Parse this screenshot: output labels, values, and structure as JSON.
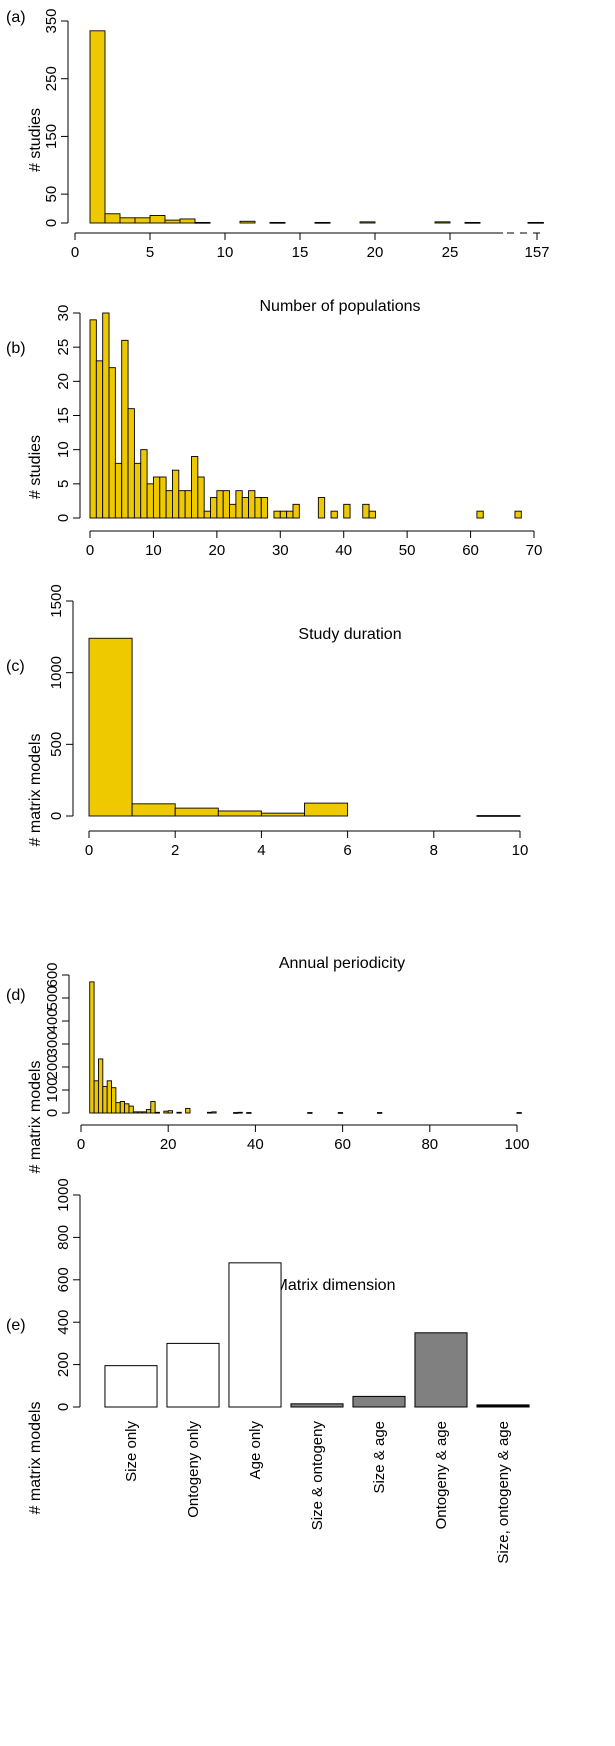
{
  "colors": {
    "bar": "#eec900",
    "white_bar": "#ffffff",
    "gray_bar": "#808080",
    "axis": "#000000"
  },
  "chart_data": [
    {
      "panel": "(a)",
      "type": "bar",
      "xlabel": "Number of populations",
      "ylabel": "# studies",
      "xticks": [
        "0",
        "5",
        "10",
        "15",
        "20",
        "25",
        "157"
      ],
      "yticks": [
        "0",
        "50",
        "150",
        "250",
        "350"
      ],
      "ylim": [
        0,
        350
      ],
      "axis_break": true,
      "bins": [
        {
          "x0": 1,
          "x1": 2,
          "value": 333
        },
        {
          "x0": 2,
          "x1": 3,
          "value": 16
        },
        {
          "x0": 3,
          "x1": 4,
          "value": 9
        },
        {
          "x0": 4,
          "x1": 5,
          "value": 9
        },
        {
          "x0": 5,
          "x1": 6,
          "value": 13
        },
        {
          "x0": 6,
          "x1": 7,
          "value": 5
        },
        {
          "x0": 7,
          "x1": 8,
          "value": 7
        },
        {
          "x0": 8,
          "x1": 9,
          "value": 1
        },
        {
          "x0": 11,
          "x1": 12,
          "value": 3
        },
        {
          "x0": 13,
          "x1": 14,
          "value": 1
        },
        {
          "x0": 16,
          "x1": 17,
          "value": 1
        },
        {
          "x0": 19,
          "x1": 20,
          "value": 2
        },
        {
          "x0": 24,
          "x1": 25,
          "value": 2
        },
        {
          "x0": 26,
          "x1": 27,
          "value": 1
        },
        {
          "x0": 157,
          "x1": 158,
          "value": 1
        }
      ]
    },
    {
      "panel": "(b)",
      "type": "bar",
      "xlabel": "Study duration",
      "ylabel": "# studies",
      "xticks": [
        "0",
        "10",
        "20",
        "30",
        "40",
        "50",
        "60",
        "70"
      ],
      "yticks": [
        "0",
        "5",
        "10",
        "15",
        "20",
        "25",
        "30"
      ],
      "ylim": [
        0,
        30
      ],
      "bins": [
        {
          "x0": 0,
          "x1": 1,
          "value": 29
        },
        {
          "x0": 1,
          "x1": 2,
          "value": 23
        },
        {
          "x0": 2,
          "x1": 3,
          "value": 30
        },
        {
          "x0": 3,
          "x1": 4,
          "value": 22
        },
        {
          "x0": 4,
          "x1": 5,
          "value": 8
        },
        {
          "x0": 5,
          "x1": 6,
          "value": 26
        },
        {
          "x0": 6,
          "x1": 7,
          "value": 16
        },
        {
          "x0": 7,
          "x1": 8,
          "value": 8
        },
        {
          "x0": 8,
          "x1": 9,
          "value": 10
        },
        {
          "x0": 9,
          "x1": 10,
          "value": 5
        },
        {
          "x0": 10,
          "x1": 11,
          "value": 6
        },
        {
          "x0": 11,
          "x1": 12,
          "value": 6
        },
        {
          "x0": 12,
          "x1": 13,
          "value": 4
        },
        {
          "x0": 13,
          "x1": 14,
          "value": 7
        },
        {
          "x0": 14,
          "x1": 15,
          "value": 4
        },
        {
          "x0": 15,
          "x1": 16,
          "value": 4
        },
        {
          "x0": 16,
          "x1": 17,
          "value": 9
        },
        {
          "x0": 17,
          "x1": 18,
          "value": 6
        },
        {
          "x0": 18,
          "x1": 19,
          "value": 1
        },
        {
          "x0": 19,
          "x1": 20,
          "value": 3
        },
        {
          "x0": 20,
          "x1": 21,
          "value": 4
        },
        {
          "x0": 21,
          "x1": 22,
          "value": 4
        },
        {
          "x0": 22,
          "x1": 23,
          "value": 2
        },
        {
          "x0": 23,
          "x1": 24,
          "value": 4
        },
        {
          "x0": 24,
          "x1": 25,
          "value": 3
        },
        {
          "x0": 25,
          "x1": 26,
          "value": 4
        },
        {
          "x0": 26,
          "x1": 27,
          "value": 3
        },
        {
          "x0": 27,
          "x1": 28,
          "value": 3
        },
        {
          "x0": 29,
          "x1": 30,
          "value": 1
        },
        {
          "x0": 30,
          "x1": 31,
          "value": 1
        },
        {
          "x0": 31,
          "x1": 32,
          "value": 1
        },
        {
          "x0": 32,
          "x1": 33,
          "value": 2
        },
        {
          "x0": 36,
          "x1": 37,
          "value": 3
        },
        {
          "x0": 38,
          "x1": 39,
          "value": 1
        },
        {
          "x0": 40,
          "x1": 41,
          "value": 2
        },
        {
          "x0": 43,
          "x1": 44,
          "value": 2
        },
        {
          "x0": 44,
          "x1": 45,
          "value": 1
        },
        {
          "x0": 61,
          "x1": 62,
          "value": 1
        },
        {
          "x0": 67,
          "x1": 68,
          "value": 1
        }
      ]
    },
    {
      "panel": "(c)",
      "type": "bar",
      "xlabel": "Annual periodicity",
      "ylabel": "# matrix models",
      "xticks": [
        "0",
        "2",
        "4",
        "6",
        "8",
        "10"
      ],
      "yticks": [
        "0",
        "500",
        "1000",
        "1500"
      ],
      "ylim": [
        0,
        1500
      ],
      "bins": [
        {
          "x0": 0,
          "x1": 1,
          "value": 1240
        },
        {
          "x0": 1,
          "x1": 2,
          "value": 85
        },
        {
          "x0": 2,
          "x1": 3,
          "value": 55
        },
        {
          "x0": 3,
          "x1": 4,
          "value": 35
        },
        {
          "x0": 4,
          "x1": 5,
          "value": 20
        },
        {
          "x0": 5,
          "x1": 6,
          "value": 90
        },
        {
          "x0": 9,
          "x1": 10,
          "value": 3
        }
      ]
    },
    {
      "panel": "(d)",
      "type": "bar",
      "xlabel": "Matrix dimension",
      "ylabel": "# matrix models",
      "xticks": [
        "0",
        "20",
        "40",
        "60",
        "80",
        "100"
      ],
      "yticks": [
        "0",
        "100",
        "200",
        "300",
        "400",
        "500",
        "600"
      ],
      "ylim": [
        0,
        600
      ],
      "bins": [
        {
          "x0": 2,
          "x1": 3,
          "value": 570
        },
        {
          "x0": 3,
          "x1": 4,
          "value": 140
        },
        {
          "x0": 4,
          "x1": 5,
          "value": 235
        },
        {
          "x0": 5,
          "x1": 6,
          "value": 115
        },
        {
          "x0": 6,
          "x1": 7,
          "value": 140
        },
        {
          "x0": 7,
          "x1": 8,
          "value": 110
        },
        {
          "x0": 8,
          "x1": 9,
          "value": 45
        },
        {
          "x0": 9,
          "x1": 10,
          "value": 50
        },
        {
          "x0": 10,
          "x1": 11,
          "value": 40
        },
        {
          "x0": 11,
          "x1": 12,
          "value": 30
        },
        {
          "x0": 12,
          "x1": 13,
          "value": 5
        },
        {
          "x0": 13,
          "x1": 14,
          "value": 5
        },
        {
          "x0": 14,
          "x1": 15,
          "value": 5
        },
        {
          "x0": 15,
          "x1": 16,
          "value": 15
        },
        {
          "x0": 16,
          "x1": 17,
          "value": 50
        },
        {
          "x0": 17,
          "x1": 18,
          "value": 3
        },
        {
          "x0": 19,
          "x1": 20,
          "value": 8
        },
        {
          "x0": 20,
          "x1": 21,
          "value": 10
        },
        {
          "x0": 22,
          "x1": 23,
          "value": 3
        },
        {
          "x0": 24,
          "x1": 25,
          "value": 20
        },
        {
          "x0": 29,
          "x1": 30,
          "value": 3
        },
        {
          "x0": 30,
          "x1": 31,
          "value": 5
        },
        {
          "x0": 35,
          "x1": 36,
          "value": 2
        },
        {
          "x0": 36,
          "x1": 37,
          "value": 3
        },
        {
          "x0": 38,
          "x1": 39,
          "value": 2
        },
        {
          "x0": 52,
          "x1": 53,
          "value": 2
        },
        {
          "x0": 59,
          "x1": 60,
          "value": 2
        },
        {
          "x0": 68,
          "x1": 69,
          "value": 2
        },
        {
          "x0": 100,
          "x1": 101,
          "value": 2
        }
      ]
    },
    {
      "panel": "(e)",
      "type": "bar",
      "xlabel": "",
      "ylabel": "# matrix models",
      "yticks": [
        "0",
        "200",
        "400",
        "600",
        "800",
        "1000"
      ],
      "ylim": [
        0,
        1000
      ],
      "categories": [
        "Size only",
        "Ontogeny only",
        "Age only",
        "Size & ontogeny",
        "Size & age",
        "Ontogeny & age",
        "Size, ontogeny & age"
      ],
      "values": [
        195,
        300,
        680,
        15,
        50,
        350,
        10
      ],
      "fills": [
        "white",
        "white",
        "white",
        "gray",
        "gray",
        "gray",
        "black"
      ]
    }
  ]
}
